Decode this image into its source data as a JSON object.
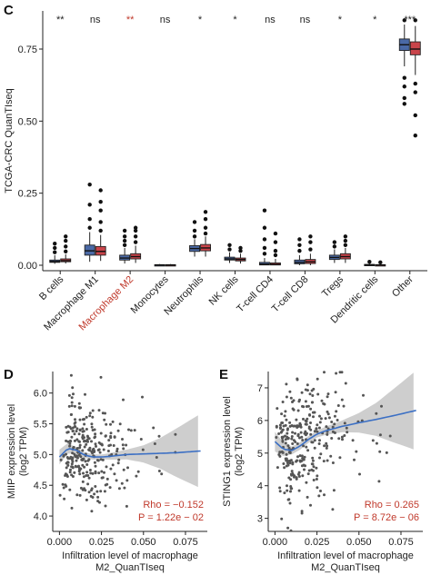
{
  "chart_data": [
    {
      "type": "box",
      "panel_label": "C",
      "ylabel": "TCGA-CRC QuanTIseq",
      "ylim": [
        0,
        0.85
      ],
      "yticks": [
        "0.00",
        "0.25",
        "0.50",
        "0.75"
      ],
      "ytick_values": [
        0,
        0.25,
        0.5,
        0.75
      ],
      "grid": false,
      "categories": [
        "B cells",
        "Macrophage M1",
        "Macrophage M2",
        "Monocytes",
        "Neutrophils",
        "NK cells",
        "T-cell CD4",
        "T-cell CD8",
        "Tregs",
        "Dendritic cells",
        "Other"
      ],
      "highlight_category": "Macrophage M2",
      "highlight_color": "#c0392b",
      "significance": [
        "**",
        "ns",
        "**",
        "ns",
        "*",
        "*",
        "ns",
        "ns",
        "*",
        "*",
        "***"
      ],
      "series_colors": [
        "#4a69a6",
        "#c9444a"
      ],
      "series": [
        {
          "boxes": [
            {
              "q1": 0.01,
              "median": 0.013,
              "q3": 0.018,
              "whisker_low": 0.005,
              "whisker_high": 0.035,
              "outliers": [
                0.045,
                0.06,
                0.075
              ]
            },
            {
              "q1": 0.035,
              "median": 0.05,
              "q3": 0.07,
              "whisker_low": 0.012,
              "whisker_high": 0.115,
              "outliers": [
                0.13,
                0.16,
                0.21,
                0.28
              ]
            },
            {
              "q1": 0.018,
              "median": 0.025,
              "q3": 0.035,
              "whisker_low": 0.006,
              "whisker_high": 0.06,
              "outliers": [
                0.07,
                0.085,
                0.1,
                0.12
              ]
            },
            {
              "q1": 0.0,
              "median": 0.001,
              "q3": 0.002,
              "whisker_low": 0.0,
              "whisker_high": 0.004,
              "outliers": []
            },
            {
              "q1": 0.048,
              "median": 0.058,
              "q3": 0.068,
              "whisker_low": 0.03,
              "whisker_high": 0.09,
              "outliers": [
                0.1,
                0.12,
                0.15
              ]
            },
            {
              "q1": 0.018,
              "median": 0.022,
              "q3": 0.028,
              "whisker_low": 0.008,
              "whisker_high": 0.045,
              "outliers": [
                0.055,
                0.07
              ]
            },
            {
              "q1": 0.001,
              "median": 0.004,
              "q3": 0.01,
              "whisker_low": 0.0,
              "whisker_high": 0.025,
              "outliers": [
                0.04,
                0.06,
                0.09,
                0.13,
                0.19
              ]
            },
            {
              "q1": 0.005,
              "median": 0.01,
              "q3": 0.018,
              "whisker_low": 0.0,
              "whisker_high": 0.035,
              "outliers": [
                0.05,
                0.07,
                0.09
              ]
            },
            {
              "q1": 0.02,
              "median": 0.027,
              "q3": 0.035,
              "whisker_low": 0.008,
              "whisker_high": 0.055,
              "outliers": [
                0.065,
                0.08
              ]
            },
            {
              "q1": 0.0,
              "median": 0.001,
              "q3": 0.003,
              "whisker_low": 0.0,
              "whisker_high": 0.007,
              "outliers": [
                0.012
              ]
            },
            {
              "q1": 0.745,
              "median": 0.765,
              "q3": 0.785,
              "whisker_low": 0.69,
              "whisker_high": 0.835,
              "outliers": [
                0.65,
                0.62,
                0.58,
                0.56,
                0.85
              ]
            }
          ]
        },
        {
          "boxes": [
            {
              "q1": 0.012,
              "median": 0.016,
              "q3": 0.022,
              "whisker_low": 0.006,
              "whisker_high": 0.038,
              "outliers": [
                0.048,
                0.065,
                0.085,
                0.1
              ]
            },
            {
              "q1": 0.035,
              "median": 0.048,
              "q3": 0.065,
              "whisker_low": 0.015,
              "whisker_high": 0.105,
              "outliers": [
                0.12,
                0.15,
                0.19,
                0.22,
                0.26
              ]
            },
            {
              "q1": 0.022,
              "median": 0.03,
              "q3": 0.04,
              "whisker_low": 0.008,
              "whisker_high": 0.068,
              "outliers": [
                0.08,
                0.1,
                0.12,
                0.13
              ]
            },
            {
              "q1": 0.0,
              "median": 0.001,
              "q3": 0.002,
              "whisker_low": 0.0,
              "whisker_high": 0.004,
              "outliers": []
            },
            {
              "q1": 0.05,
              "median": 0.06,
              "q3": 0.072,
              "whisker_low": 0.03,
              "whisker_high": 0.1,
              "outliers": [
                0.11,
                0.13,
                0.16,
                0.185
              ]
            },
            {
              "q1": 0.015,
              "median": 0.02,
              "q3": 0.025,
              "whisker_low": 0.006,
              "whisker_high": 0.04,
              "outliers": [
                0.05,
                0.06
              ]
            },
            {
              "q1": 0.001,
              "median": 0.003,
              "q3": 0.008,
              "whisker_low": 0.0,
              "whisker_high": 0.022,
              "outliers": [
                0.035,
                0.05,
                0.08,
                0.11
              ]
            },
            {
              "q1": 0.006,
              "median": 0.012,
              "q3": 0.02,
              "whisker_low": 0.0,
              "whisker_high": 0.04,
              "outliers": [
                0.055,
                0.08,
                0.1
              ]
            },
            {
              "q1": 0.022,
              "median": 0.03,
              "q3": 0.04,
              "whisker_low": 0.008,
              "whisker_high": 0.06,
              "outliers": [
                0.07,
                0.085,
                0.1
              ]
            },
            {
              "q1": 0.0,
              "median": 0.001,
              "q3": 0.002,
              "whisker_low": 0.0,
              "whisker_high": 0.006,
              "outliers": [
                0.01
              ]
            },
            {
              "q1": 0.73,
              "median": 0.75,
              "q3": 0.775,
              "whisker_low": 0.66,
              "whisker_high": 0.83,
              "outliers": [
                0.63,
                0.6,
                0.52,
                0.45,
                0.85
              ]
            }
          ]
        }
      ]
    },
    {
      "type": "scatter",
      "panel_label": "D",
      "xlabel": "Infiltration level of macrophage M2_QuanTIseq",
      "ylabel": "MIIP expression level (log2 TPM)",
      "xlim": [
        -0.004,
        0.088
      ],
      "ylim": [
        3.75,
        6.35
      ],
      "xticks": [
        "0.000",
        "0.025",
        "0.050",
        "0.075"
      ],
      "xtick_values": [
        0,
        0.025,
        0.05,
        0.075
      ],
      "yticks": [
        "4.0",
        "4.5",
        "5.0",
        "5.5",
        "6.0"
      ],
      "ytick_values": [
        4.0,
        4.5,
        5.0,
        5.5,
        6.0
      ],
      "annotation_rho": "Rho = −0.152",
      "annotation_p": "P = 1.22e − 02",
      "annotation_color": "#c0392b",
      "fit": {
        "x": [
          0,
          0.005,
          0.01,
          0.015,
          0.02,
          0.025,
          0.03,
          0.04,
          0.05,
          0.06,
          0.07,
          0.085
        ],
        "y": [
          4.96,
          5.1,
          5.07,
          4.99,
          4.96,
          4.96,
          4.97,
          5.0,
          5.01,
          5.02,
          5.03,
          5.06
        ]
      },
      "ci_halfwidth": {
        "x": [
          0,
          0.01,
          0.025,
          0.04,
          0.05,
          0.06,
          0.07,
          0.085
        ],
        "y": [
          0.12,
          0.05,
          0.04,
          0.08,
          0.14,
          0.25,
          0.4,
          0.62
        ]
      },
      "points_count_note": "dense cloud of ~300 points"
    },
    {
      "type": "scatter",
      "panel_label": "E",
      "xlabel": "Infiltration level of macrophage M2_QuanTIseq",
      "ylabel": "STING1 expression level (log2 TPM)",
      "xlim": [
        -0.004,
        0.088
      ],
      "ylim": [
        2.6,
        7.5
      ],
      "xticks": [
        "0.000",
        "0.025",
        "0.050",
        "0.075"
      ],
      "xtick_values": [
        0,
        0.025,
        0.05,
        0.075
      ],
      "yticks": [
        "3",
        "4",
        "5",
        "6",
        "7"
      ],
      "ytick_values": [
        3,
        4,
        5,
        6,
        7
      ],
      "annotation_rho": "Rho = 0.265",
      "annotation_p": "P = 8.72e − 06",
      "annotation_color": "#c0392b",
      "fit": {
        "x": [
          0,
          0.005,
          0.01,
          0.015,
          0.02,
          0.025,
          0.03,
          0.04,
          0.05,
          0.06,
          0.07,
          0.085
        ],
        "y": [
          5.35,
          5.12,
          5.08,
          5.22,
          5.42,
          5.58,
          5.68,
          5.82,
          5.93,
          6.03,
          6.14,
          6.32
        ]
      },
      "ci_halfwidth": {
        "x": [
          0,
          0.01,
          0.025,
          0.04,
          0.05,
          0.06,
          0.07,
          0.085
        ],
        "y": [
          0.3,
          0.12,
          0.1,
          0.18,
          0.3,
          0.5,
          0.8,
          1.25
        ]
      }
    }
  ]
}
